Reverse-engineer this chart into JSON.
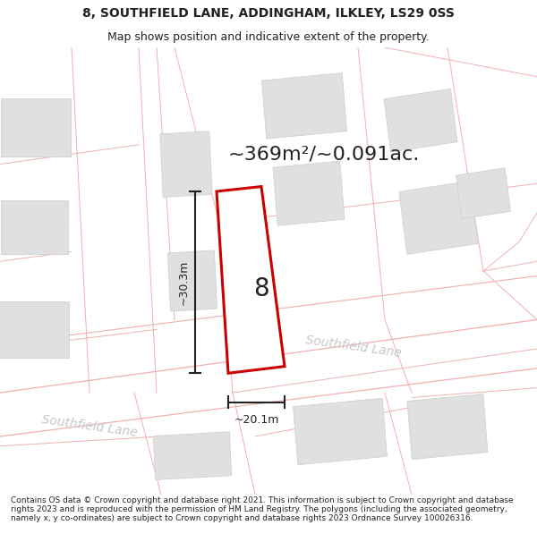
{
  "title_line1": "8, SOUTHFIELD LANE, ADDINGHAM, ILKLEY, LS29 0SS",
  "title_line2": "Map shows position and indicative extent of the property.",
  "area_text": "~369m²/~0.091ac.",
  "width_label": "~20.1m",
  "height_label": "~30.3m",
  "number_label": "8",
  "road_label1": "Southfield Lane",
  "road_label2": "Southfield Lane",
  "footer_text": "Contains OS data © Crown copyright and database right 2021. This information is subject to Crown copyright and database rights 2023 and is reproduced with the permission of HM Land Registry. The polygons (including the associated geometry, namely x, y co-ordinates) are subject to Crown copyright and database rights 2023 Ordnance Survey 100026316.",
  "bg_color": "#ffffff",
  "road_line_color": "#f0b0b0",
  "building_fill": "#e0e0e0",
  "building_edge": "#d0d0d0",
  "property_fill": "#ffffff",
  "property_edge": "#cc0000",
  "dim_line_color": "#222222",
  "text_color": "#222222",
  "road_text_color": "#c8c8c8",
  "area_text_fontsize": 16,
  "number_fontsize": 20,
  "title_fontsize1": 10,
  "title_fontsize2": 9,
  "footer_fontsize": 6.5
}
